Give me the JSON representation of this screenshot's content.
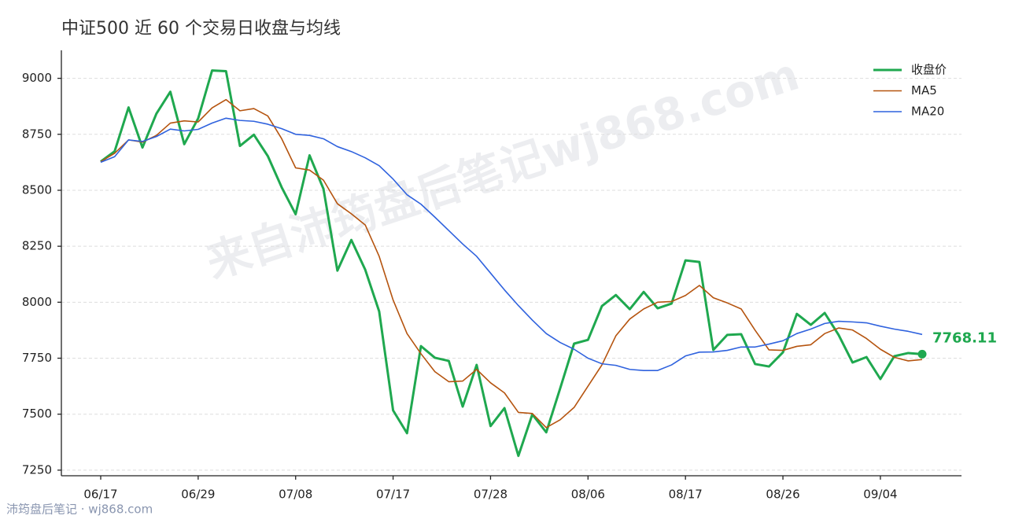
{
  "chart_data": {
    "type": "line",
    "title": "中证500 近 60 个交易日收盘与均线",
    "watermark": "来自沛筠盘后笔记wj868.com",
    "footer": "沛筠盘后笔记 · wj868.com",
    "categories": [
      "06/17",
      null,
      null,
      null,
      null,
      null,
      null,
      "06/29",
      null,
      null,
      null,
      null,
      null,
      null,
      "07/08",
      null,
      null,
      null,
      null,
      null,
      null,
      "07/17",
      null,
      null,
      null,
      null,
      null,
      null,
      "07/28",
      null,
      null,
      null,
      null,
      null,
      null,
      "08/06",
      null,
      null,
      null,
      null,
      null,
      null,
      "08/17",
      null,
      null,
      null,
      null,
      null,
      null,
      "08/26",
      null,
      null,
      null,
      null,
      null,
      null,
      "09/04",
      null,
      null,
      null
    ],
    "series": [
      {
        "name": "收盘价",
        "color": "#1fa84f",
        "width": 3,
        "values": [
          8628,
          8674,
          8870,
          8691,
          8842,
          8940,
          8706,
          8821,
          9035,
          9032,
          8698,
          8748,
          8653,
          8513,
          8393,
          8656,
          8506,
          8141,
          8278,
          8145,
          7959,
          7517,
          7415,
          7804,
          7752,
          7738,
          7534,
          7720,
          7447,
          7527,
          7314,
          7499,
          7419,
          7615,
          7815,
          7832,
          7983,
          8032,
          7969,
          8046,
          7973,
          7994,
          8187,
          8180,
          7787,
          7854,
          7857,
          7724,
          7713,
          7776,
          7948,
          7899,
          7952,
          7854,
          7731,
          7755,
          7657,
          7759,
          7773,
          7768.11
        ]
      },
      {
        "name": "MA5",
        "color": "#b5540f",
        "width": 1.6,
        "values": [
          8628,
          8665,
          8725,
          8715,
          8745,
          8800,
          8810,
          8805,
          8868,
          8905,
          8855,
          8865,
          8832,
          8730,
          8600,
          8590,
          8545,
          8440,
          8395,
          8345,
          8205,
          8010,
          7860,
          7770,
          7690,
          7645,
          7648,
          7700,
          7640,
          7595,
          7508,
          7503,
          7440,
          7475,
          7530,
          7625,
          7720,
          7850,
          7925,
          7970,
          8000,
          8003,
          8030,
          8075,
          8020,
          7997,
          7970,
          7875,
          7787,
          7785,
          7803,
          7810,
          7860,
          7885,
          7876,
          7838,
          7790,
          7754,
          7738,
          7744
        ]
      },
      {
        "name": "MA20",
        "color": "#2f62de",
        "width": 1.6,
        "values": [
          8625,
          8650,
          8725,
          8718,
          8740,
          8773,
          8765,
          8772,
          8800,
          8822,
          8812,
          8808,
          8795,
          8775,
          8750,
          8745,
          8730,
          8695,
          8673,
          8645,
          8610,
          8550,
          8480,
          8438,
          8380,
          8320,
          8260,
          8205,
          8130,
          8055,
          7985,
          7920,
          7860,
          7820,
          7790,
          7750,
          7725,
          7718,
          7700,
          7695,
          7695,
          7720,
          7760,
          7777,
          7778,
          7785,
          7800,
          7800,
          7813,
          7828,
          7860,
          7880,
          7905,
          7915,
          7912,
          7908,
          7893,
          7880,
          7870,
          7856
        ]
      }
    ],
    "highlight_last": true,
    "ylim": [
      7225,
      9125
    ],
    "yticks": [
      7250,
      7500,
      7750,
      8000,
      8250,
      8500,
      8750,
      9000
    ],
    "grid": true,
    "legend": "upper right"
  }
}
